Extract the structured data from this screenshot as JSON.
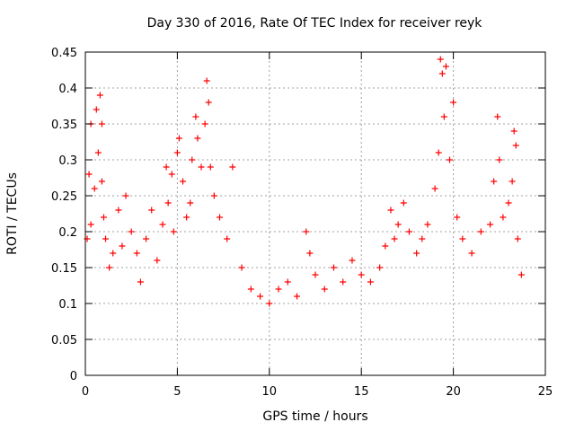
{
  "chart_data": {
    "type": "scatter",
    "title": "Day 330 of 2016, Rate Of TEC Index for receiver reyk",
    "xlabel": "GPS time / hours",
    "ylabel": "ROTI / TECUs",
    "xlim": [
      0,
      25
    ],
    "ylim": [
      0,
      0.45
    ],
    "xticks": [
      "0",
      "5",
      "10",
      "15",
      "20",
      "25"
    ],
    "yticks": [
      "0",
      "0.05",
      "0.1",
      "0.15",
      "0.2",
      "0.25",
      "0.3",
      "0.35",
      "0.4",
      "0.45"
    ],
    "grid": true,
    "marker": "+",
    "color": "#ff0000",
    "series": [
      {
        "x": [
          0.1,
          0.2,
          0.3,
          0.3,
          0.5,
          0.6,
          0.7,
          0.8,
          0.9,
          0.9,
          1.0,
          1.1,
          1.3,
          1.5,
          1.8,
          2.0,
          2.2,
          2.5,
          2.8,
          3.0,
          3.3,
          3.6,
          3.9,
          4.2,
          4.4,
          4.5,
          4.7,
          4.8,
          5.0,
          5.1,
          5.3,
          5.5,
          5.7,
          5.8,
          6.0,
          6.1,
          6.3,
          6.5,
          6.6,
          6.7,
          6.8,
          7.0,
          7.3,
          7.7,
          8.0,
          8.5,
          9.0,
          9.5,
          10.0,
          10.5,
          11.0,
          11.5,
          12.0,
          12.2,
          12.5,
          13.0,
          13.5,
          14.0,
          14.5,
          15.0,
          15.5,
          16.0,
          16.3,
          16.6,
          16.8,
          17.0,
          17.3,
          17.6,
          18.0,
          18.3,
          18.6,
          19.0,
          19.2,
          19.3,
          19.4,
          19.5,
          19.6,
          19.8,
          20.0,
          20.2,
          20.5,
          21.0,
          21.5,
          22.0,
          22.2,
          22.4,
          22.5,
          22.7,
          23.0,
          23.2,
          23.3,
          23.4,
          23.5,
          23.7
        ],
        "y": [
          0.19,
          0.28,
          0.35,
          0.21,
          0.26,
          0.37,
          0.31,
          0.39,
          0.27,
          0.35,
          0.22,
          0.19,
          0.15,
          0.17,
          0.23,
          0.18,
          0.25,
          0.2,
          0.17,
          0.13,
          0.19,
          0.23,
          0.16,
          0.21,
          0.29,
          0.24,
          0.28,
          0.2,
          0.31,
          0.33,
          0.27,
          0.22,
          0.24,
          0.3,
          0.36,
          0.33,
          0.29,
          0.35,
          0.41,
          0.38,
          0.29,
          0.25,
          0.22,
          0.19,
          0.29,
          0.15,
          0.12,
          0.11,
          0.1,
          0.12,
          0.13,
          0.11,
          0.2,
          0.17,
          0.14,
          0.12,
          0.15,
          0.13,
          0.16,
          0.14,
          0.13,
          0.15,
          0.18,
          0.23,
          0.19,
          0.21,
          0.24,
          0.2,
          0.17,
          0.19,
          0.21,
          0.26,
          0.31,
          0.44,
          0.42,
          0.36,
          0.43,
          0.3,
          0.38,
          0.22,
          0.19,
          0.17,
          0.2,
          0.21,
          0.27,
          0.36,
          0.3,
          0.22,
          0.24,
          0.27,
          0.34,
          0.32,
          0.19,
          0.14
        ]
      }
    ]
  }
}
